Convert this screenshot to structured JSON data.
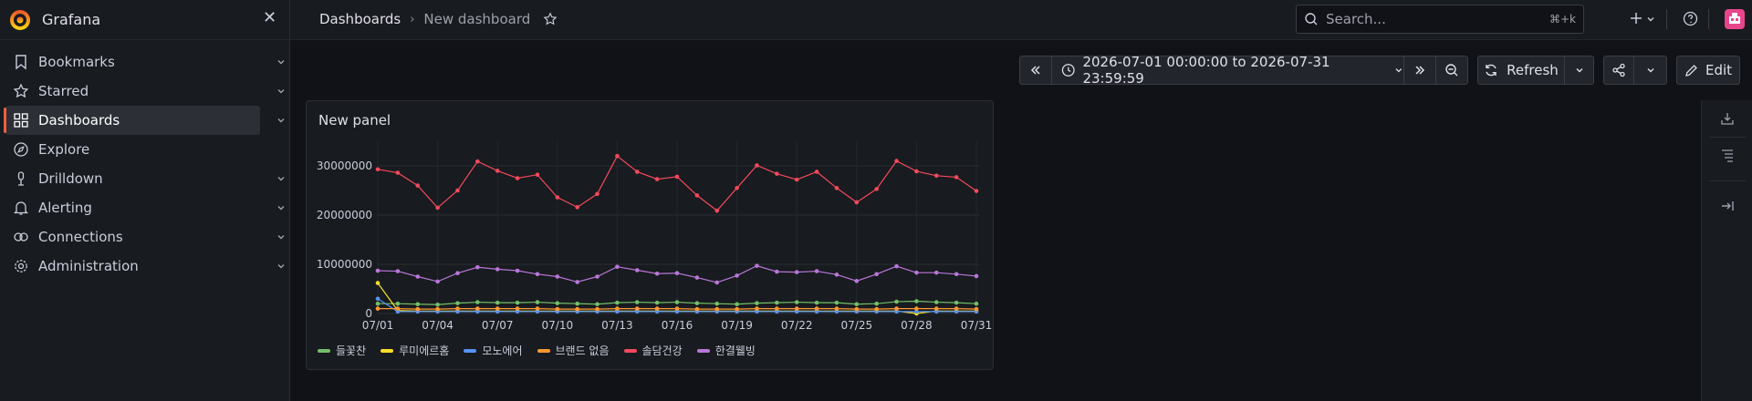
{
  "brand": {
    "name": "Grafana",
    "close_glyph": "✕"
  },
  "sidebar": {
    "items": [
      {
        "label": "Bookmarks",
        "icon": "bookmark-icon",
        "has_chevron": true
      },
      {
        "label": "Starred",
        "icon": "star-icon",
        "has_chevron": true
      },
      {
        "label": "Dashboards",
        "icon": "apps-icon",
        "has_chevron": true,
        "active": true
      },
      {
        "label": "Explore",
        "icon": "compass-icon",
        "has_chevron": false
      },
      {
        "label": "Drilldown",
        "icon": "drilldown-icon",
        "has_chevron": true
      },
      {
        "label": "Alerting",
        "icon": "bell-icon",
        "has_chevron": true
      },
      {
        "label": "Connections",
        "icon": "link-icon",
        "has_chevron": true
      },
      {
        "label": "Administration",
        "icon": "gear-icon",
        "has_chevron": true
      }
    ]
  },
  "header": {
    "breadcrumbs": [
      "Dashboards",
      "New dashboard"
    ],
    "breadcrumb_separator": "›",
    "search_placeholder": "Search...",
    "search_shortcut": "⌘+k"
  },
  "toolbar": {
    "time_range": "2026-07-01 00:00:00 to 2026-07-31 23:59:59",
    "refresh_label": "Refresh",
    "edit_label": "Edit"
  },
  "panel": {
    "title": "New panel"
  },
  "colors": {
    "accent": "#f55f3e",
    "background": "#111217",
    "surface": "#181b1f"
  },
  "chart_data": {
    "type": "line",
    "title": "New panel",
    "x": [
      "07/01",
      "07/02",
      "07/03",
      "07/04",
      "07/05",
      "07/06",
      "07/07",
      "07/08",
      "07/09",
      "07/10",
      "07/11",
      "07/12",
      "07/13",
      "07/14",
      "07/15",
      "07/16",
      "07/17",
      "07/18",
      "07/19",
      "07/20",
      "07/21",
      "07/22",
      "07/23",
      "07/24",
      "07/25",
      "07/26",
      "07/27",
      "07/28",
      "07/29",
      "07/30",
      "07/31"
    ],
    "x_tick_labels": [
      "07/01",
      "07/04",
      "07/07",
      "07/10",
      "07/13",
      "07/16",
      "07/19",
      "07/22",
      "07/25",
      "07/28",
      "07/31"
    ],
    "y_tick_labels": [
      "0",
      "10000000",
      "20000000",
      "30000000"
    ],
    "ylim": [
      0,
      35000000
    ],
    "grid": true,
    "legend_position": "bottom-left",
    "series": [
      {
        "name": "들꽃찬",
        "color": "#73bf69",
        "values": [
          2000000,
          2000000,
          1900000,
          1800000,
          2100000,
          2300000,
          2200000,
          2200000,
          2300000,
          2100000,
          2000000,
          1900000,
          2200000,
          2300000,
          2200000,
          2300000,
          2100000,
          2000000,
          1900000,
          2100000,
          2200000,
          2300000,
          2200000,
          2200000,
          1900000,
          2000000,
          2400000,
          2500000,
          2300000,
          2200000,
          2000000
        ]
      },
      {
        "name": "루미에르홈",
        "color": "#fade2a",
        "values": [
          6200000,
          600000,
          500000,
          500000,
          500000,
          500000,
          500000,
          500000,
          500000,
          500000,
          500000,
          500000,
          500000,
          500000,
          500000,
          500000,
          500000,
          500000,
          500000,
          500000,
          500000,
          500000,
          500000,
          500000,
          500000,
          500000,
          500000,
          0,
          500000,
          500000,
          500000
        ]
      },
      {
        "name": "모노에어",
        "color": "#5794f2",
        "values": [
          3000000,
          400000,
          400000,
          400000,
          400000,
          400000,
          400000,
          400000,
          400000,
          400000,
          400000,
          400000,
          400000,
          400000,
          400000,
          400000,
          400000,
          400000,
          400000,
          400000,
          400000,
          400000,
          400000,
          400000,
          400000,
          400000,
          400000,
          400000,
          400000,
          400000,
          400000
        ]
      },
      {
        "name": "브랜드 없음",
        "color": "#ff9830",
        "values": [
          1000000,
          1000000,
          900000,
          900000,
          1000000,
          1000000,
          1000000,
          1000000,
          1000000,
          900000,
          900000,
          900000,
          1000000,
          1000000,
          1000000,
          1000000,
          900000,
          900000,
          900000,
          1000000,
          1000000,
          1000000,
          1000000,
          1000000,
          900000,
          900000,
          1000000,
          1000000,
          1000000,
          1000000,
          900000
        ]
      },
      {
        "name": "솔담건강",
        "color": "#f2495c",
        "values": [
          29300000,
          28600000,
          26000000,
          21500000,
          25000000,
          30900000,
          29000000,
          27500000,
          28200000,
          23600000,
          21600000,
          24300000,
          32000000,
          28800000,
          27300000,
          27800000,
          24000000,
          20900000,
          25500000,
          30100000,
          28400000,
          27200000,
          28800000,
          25500000,
          22600000,
          25300000,
          31000000,
          28900000,
          28000000,
          27700000,
          24900000
        ]
      },
      {
        "name": "한결웰빙",
        "color": "#b877d9",
        "values": [
          8700000,
          8600000,
          7500000,
          6500000,
          8200000,
          9400000,
          9000000,
          8700000,
          8000000,
          7500000,
          6400000,
          7500000,
          9500000,
          8800000,
          8100000,
          8200000,
          7300000,
          6300000,
          7700000,
          9700000,
          8500000,
          8400000,
          8600000,
          7900000,
          6600000,
          8000000,
          9600000,
          8300000,
          8300000,
          8000000,
          7600000
        ]
      }
    ]
  }
}
